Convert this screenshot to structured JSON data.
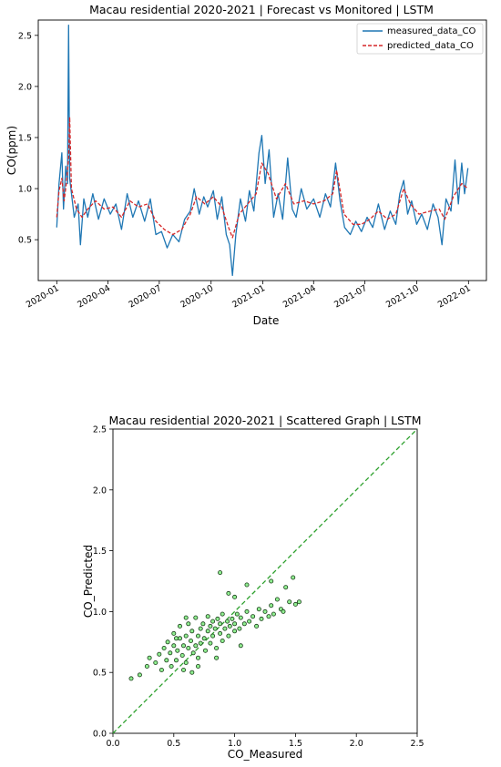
{
  "chart_data": [
    {
      "type": "line",
      "title": "Macau residential 2020-2021 | Forecast vs Monitored | LSTM",
      "xlabel": "Date",
      "ylabel": "CO(ppm)",
      "x_range": [
        "2020-01-01",
        "2021-12-31"
      ],
      "x_ticks": [
        "2020-01",
        "2020-04",
        "2020-07",
        "2020-10",
        "2021-01",
        "2021-04",
        "2021-07",
        "2021-10",
        "2022-01"
      ],
      "ylim": [
        0.1,
        2.65
      ],
      "y_ticks": [
        "0.5",
        "1.0",
        "1.5",
        "2.0",
        "2.5"
      ],
      "grid": false,
      "legend": "top-right",
      "series": [
        {
          "name": "measured_data_CO",
          "color": "#1f77b4",
          "style": "solid",
          "points": [
            [
              "2020-01-01",
              0.62
            ],
            [
              "2020-01-05",
              1.05
            ],
            [
              "2020-01-10",
              1.35
            ],
            [
              "2020-01-13",
              0.8
            ],
            [
              "2020-01-17",
              1.22
            ],
            [
              "2020-01-20",
              1.05
            ],
            [
              "2020-01-22",
              2.6
            ],
            [
              "2020-01-24",
              1.1
            ],
            [
              "2020-02-01",
              0.72
            ],
            [
              "2020-02-08",
              0.85
            ],
            [
              "2020-02-12",
              0.45
            ],
            [
              "2020-02-18",
              0.9
            ],
            [
              "2020-02-25",
              0.72
            ],
            [
              "2020-03-05",
              0.95
            ],
            [
              "2020-03-15",
              0.7
            ],
            [
              "2020-03-25",
              0.9
            ],
            [
              "2020-04-05",
              0.75
            ],
            [
              "2020-04-15",
              0.85
            ],
            [
              "2020-04-25",
              0.6
            ],
            [
              "2020-05-05",
              0.95
            ],
            [
              "2020-05-15",
              0.72
            ],
            [
              "2020-05-25",
              0.88
            ],
            [
              "2020-06-05",
              0.68
            ],
            [
              "2020-06-15",
              0.9
            ],
            [
              "2020-06-25",
              0.55
            ],
            [
              "2020-07-05",
              0.58
            ],
            [
              "2020-07-15",
              0.42
            ],
            [
              "2020-07-25",
              0.55
            ],
            [
              "2020-08-05",
              0.48
            ],
            [
              "2020-08-15",
              0.7
            ],
            [
              "2020-08-25",
              0.78
            ],
            [
              "2020-09-01",
              1.0
            ],
            [
              "2020-09-10",
              0.75
            ],
            [
              "2020-09-18",
              0.92
            ],
            [
              "2020-09-25",
              0.82
            ],
            [
              "2020-10-05",
              0.98
            ],
            [
              "2020-10-12",
              0.7
            ],
            [
              "2020-10-20",
              0.92
            ],
            [
              "2020-10-28",
              0.55
            ],
            [
              "2020-11-03",
              0.45
            ],
            [
              "2020-11-08",
              0.15
            ],
            [
              "2020-11-14",
              0.55
            ],
            [
              "2020-11-22",
              0.9
            ],
            [
              "2020-12-01",
              0.68
            ],
            [
              "2020-12-08",
              0.98
            ],
            [
              "2020-12-16",
              0.78
            ],
            [
              "2020-12-25",
              1.35
            ],
            [
              "2020-12-30",
              1.52
            ],
            [
              "2021-01-05",
              1.05
            ],
            [
              "2021-01-12",
              1.38
            ],
            [
              "2021-01-20",
              0.72
            ],
            [
              "2021-01-28",
              0.95
            ],
            [
              "2021-02-05",
              0.7
            ],
            [
              "2021-02-14",
              1.3
            ],
            [
              "2021-02-22",
              0.8
            ],
            [
              "2021-03-01",
              0.72
            ],
            [
              "2021-03-10",
              1.0
            ],
            [
              "2021-03-20",
              0.8
            ],
            [
              "2021-04-01",
              0.9
            ],
            [
              "2021-04-12",
              0.72
            ],
            [
              "2021-04-22",
              0.95
            ],
            [
              "2021-05-01",
              0.82
            ],
            [
              "2021-05-10",
              1.25
            ],
            [
              "2021-05-18",
              0.88
            ],
            [
              "2021-05-26",
              0.62
            ],
            [
              "2021-06-05",
              0.55
            ],
            [
              "2021-06-15",
              0.68
            ],
            [
              "2021-06-25",
              0.58
            ],
            [
              "2021-07-05",
              0.72
            ],
            [
              "2021-07-15",
              0.62
            ],
            [
              "2021-07-25",
              0.85
            ],
            [
              "2021-08-05",
              0.6
            ],
            [
              "2021-08-15",
              0.78
            ],
            [
              "2021-08-25",
              0.65
            ],
            [
              "2021-09-01",
              0.95
            ],
            [
              "2021-09-08",
              1.08
            ],
            [
              "2021-09-15",
              0.75
            ],
            [
              "2021-09-22",
              0.88
            ],
            [
              "2021-10-01",
              0.65
            ],
            [
              "2021-10-10",
              0.75
            ],
            [
              "2021-10-20",
              0.6
            ],
            [
              "2021-10-30",
              0.85
            ],
            [
              "2021-11-08",
              0.72
            ],
            [
              "2021-11-15",
              0.45
            ],
            [
              "2021-11-22",
              0.9
            ],
            [
              "2021-12-01",
              0.78
            ],
            [
              "2021-12-08",
              1.28
            ],
            [
              "2021-12-14",
              0.85
            ],
            [
              "2021-12-20",
              1.25
            ],
            [
              "2021-12-25",
              0.95
            ],
            [
              "2021-12-31",
              1.2
            ]
          ]
        },
        {
          "name": "predicted_data_CO",
          "color": "#d62728",
          "style": "dashed",
          "points": [
            [
              "2020-01-01",
              0.72
            ],
            [
              "2020-01-05",
              0.98
            ],
            [
              "2020-01-10",
              1.1
            ],
            [
              "2020-01-14",
              0.88
            ],
            [
              "2020-01-18",
              1.05
            ],
            [
              "2020-01-22",
              1.3
            ],
            [
              "2020-01-24",
              1.7
            ],
            [
              "2020-01-27",
              1.0
            ],
            [
              "2020-02-05",
              0.8
            ],
            [
              "2020-02-15",
              0.72
            ],
            [
              "2020-02-25",
              0.8
            ],
            [
              "2020-03-10",
              0.88
            ],
            [
              "2020-03-25",
              0.8
            ],
            [
              "2020-04-10",
              0.82
            ],
            [
              "2020-04-25",
              0.72
            ],
            [
              "2020-05-10",
              0.88
            ],
            [
              "2020-05-25",
              0.82
            ],
            [
              "2020-06-10",
              0.85
            ],
            [
              "2020-06-25",
              0.68
            ],
            [
              "2020-07-10",
              0.6
            ],
            [
              "2020-07-25",
              0.55
            ],
            [
              "2020-08-10",
              0.6
            ],
            [
              "2020-08-25",
              0.75
            ],
            [
              "2020-09-05",
              0.92
            ],
            [
              "2020-09-20",
              0.85
            ],
            [
              "2020-10-05",
              0.92
            ],
            [
              "2020-10-20",
              0.82
            ],
            [
              "2020-11-01",
              0.62
            ],
            [
              "2020-11-08",
              0.52
            ],
            [
              "2020-11-20",
              0.75
            ],
            [
              "2020-12-05",
              0.85
            ],
            [
              "2020-12-20",
              0.95
            ],
            [
              "2020-12-30",
              1.25
            ],
            [
              "2021-01-10",
              1.15
            ],
            [
              "2021-01-25",
              0.9
            ],
            [
              "2021-02-10",
              1.05
            ],
            [
              "2021-02-25",
              0.85
            ],
            [
              "2021-03-15",
              0.88
            ],
            [
              "2021-04-01",
              0.85
            ],
            [
              "2021-04-20",
              0.88
            ],
            [
              "2021-05-05",
              0.95
            ],
            [
              "2021-05-12",
              1.18
            ],
            [
              "2021-05-25",
              0.75
            ],
            [
              "2021-06-10",
              0.65
            ],
            [
              "2021-06-25",
              0.65
            ],
            [
              "2021-07-10",
              0.7
            ],
            [
              "2021-07-25",
              0.78
            ],
            [
              "2021-08-10",
              0.7
            ],
            [
              "2021-08-25",
              0.75
            ],
            [
              "2021-09-08",
              1.0
            ],
            [
              "2021-09-20",
              0.85
            ],
            [
              "2021-10-05",
              0.75
            ],
            [
              "2021-10-25",
              0.78
            ],
            [
              "2021-11-10",
              0.8
            ],
            [
              "2021-11-20",
              0.7
            ],
            [
              "2021-12-05",
              0.92
            ],
            [
              "2021-12-20",
              1.05
            ],
            [
              "2021-12-31",
              1.0
            ]
          ]
        }
      ]
    },
    {
      "type": "scatter",
      "title": "Macau residential 2020-2021 | Scattered Graph | LSTM",
      "xlabel": "CO_Measured",
      "ylabel": "CO_Predicted",
      "xlim": [
        0.0,
        2.5
      ],
      "ylim": [
        0.0,
        2.5
      ],
      "x_ticks": [
        "0.0",
        "0.5",
        "1.0",
        "1.5",
        "2.0",
        "2.5"
      ],
      "y_ticks": [
        "0.0",
        "0.5",
        "1.0",
        "1.5",
        "2.0",
        "2.5"
      ],
      "grid": false,
      "reference_line": {
        "from": [
          0.0,
          0.0
        ],
        "to": [
          2.5,
          2.5
        ],
        "color": "#2ca02c",
        "style": "dashed"
      },
      "marker_color": "#90ee90",
      "marker_edge_color": "#1a3d1a",
      "points": [
        [
          0.15,
          0.45
        ],
        [
          0.22,
          0.48
        ],
        [
          0.28,
          0.55
        ],
        [
          0.3,
          0.62
        ],
        [
          0.35,
          0.58
        ],
        [
          0.38,
          0.65
        ],
        [
          0.4,
          0.52
        ],
        [
          0.42,
          0.7
        ],
        [
          0.44,
          0.6
        ],
        [
          0.45,
          0.75
        ],
        [
          0.47,
          0.66
        ],
        [
          0.48,
          0.55
        ],
        [
          0.5,
          0.72
        ],
        [
          0.5,
          0.82
        ],
        [
          0.52,
          0.6
        ],
        [
          0.53,
          0.68
        ],
        [
          0.55,
          0.78
        ],
        [
          0.55,
          0.88
        ],
        [
          0.57,
          0.64
        ],
        [
          0.58,
          0.72
        ],
        [
          0.6,
          0.8
        ],
        [
          0.6,
          0.58
        ],
        [
          0.62,
          0.9
        ],
        [
          0.62,
          0.7
        ],
        [
          0.64,
          0.76
        ],
        [
          0.65,
          0.84
        ],
        [
          0.66,
          0.66
        ],
        [
          0.68,
          0.72
        ],
        [
          0.68,
          0.95
        ],
        [
          0.7,
          0.8
        ],
        [
          0.7,
          0.62
        ],
        [
          0.72,
          0.86
        ],
        [
          0.72,
          0.74
        ],
        [
          0.74,
          0.9
        ],
        [
          0.75,
          0.78
        ],
        [
          0.76,
          0.68
        ],
        [
          0.78,
          0.84
        ],
        [
          0.78,
          0.96
        ],
        [
          0.8,
          0.74
        ],
        [
          0.8,
          0.88
        ],
        [
          0.82,
          0.8
        ],
        [
          0.82,
          0.92
        ],
        [
          0.84,
          0.86
        ],
        [
          0.85,
          0.7
        ],
        [
          0.86,
          0.94
        ],
        [
          0.88,
          0.82
        ],
        [
          0.88,
          0.9
        ],
        [
          0.9,
          0.76
        ],
        [
          0.9,
          0.98
        ],
        [
          0.92,
          0.86
        ],
        [
          0.94,
          0.92
        ],
        [
          0.95,
          0.8
        ],
        [
          0.96,
          0.88
        ],
        [
          0.98,
          0.94
        ],
        [
          1.0,
          0.84
        ],
        [
          1.0,
          0.9
        ],
        [
          1.02,
          0.98
        ],
        [
          1.04,
          0.86
        ],
        [
          1.05,
          0.95
        ],
        [
          1.08,
          0.9
        ],
        [
          1.1,
          1.0
        ],
        [
          1.12,
          0.92
        ],
        [
          1.15,
          0.96
        ],
        [
          1.18,
          0.88
        ],
        [
          1.2,
          1.02
        ],
        [
          1.22,
          0.94
        ],
        [
          1.25,
          1.0
        ],
        [
          1.28,
          0.96
        ],
        [
          1.3,
          1.05
        ],
        [
          1.32,
          0.98
        ],
        [
          1.35,
          1.1
        ],
        [
          1.38,
          1.02
        ],
        [
          1.4,
          1.0
        ],
        [
          1.45,
          1.08
        ],
        [
          1.5,
          1.06
        ],
        [
          1.53,
          1.08
        ],
        [
          1.42,
          1.2
        ],
        [
          1.48,
          1.28
        ],
        [
          1.3,
          1.25
        ],
        [
          1.1,
          1.22
        ],
        [
          0.95,
          1.15
        ],
        [
          0.88,
          1.32
        ],
        [
          1.0,
          1.12
        ],
        [
          0.7,
          0.55
        ],
        [
          0.65,
          0.5
        ],
        [
          0.58,
          0.52
        ],
        [
          0.85,
          0.62
        ],
        [
          1.05,
          0.72
        ],
        [
          0.52,
          0.78
        ],
        [
          0.6,
          0.95
        ]
      ]
    }
  ]
}
